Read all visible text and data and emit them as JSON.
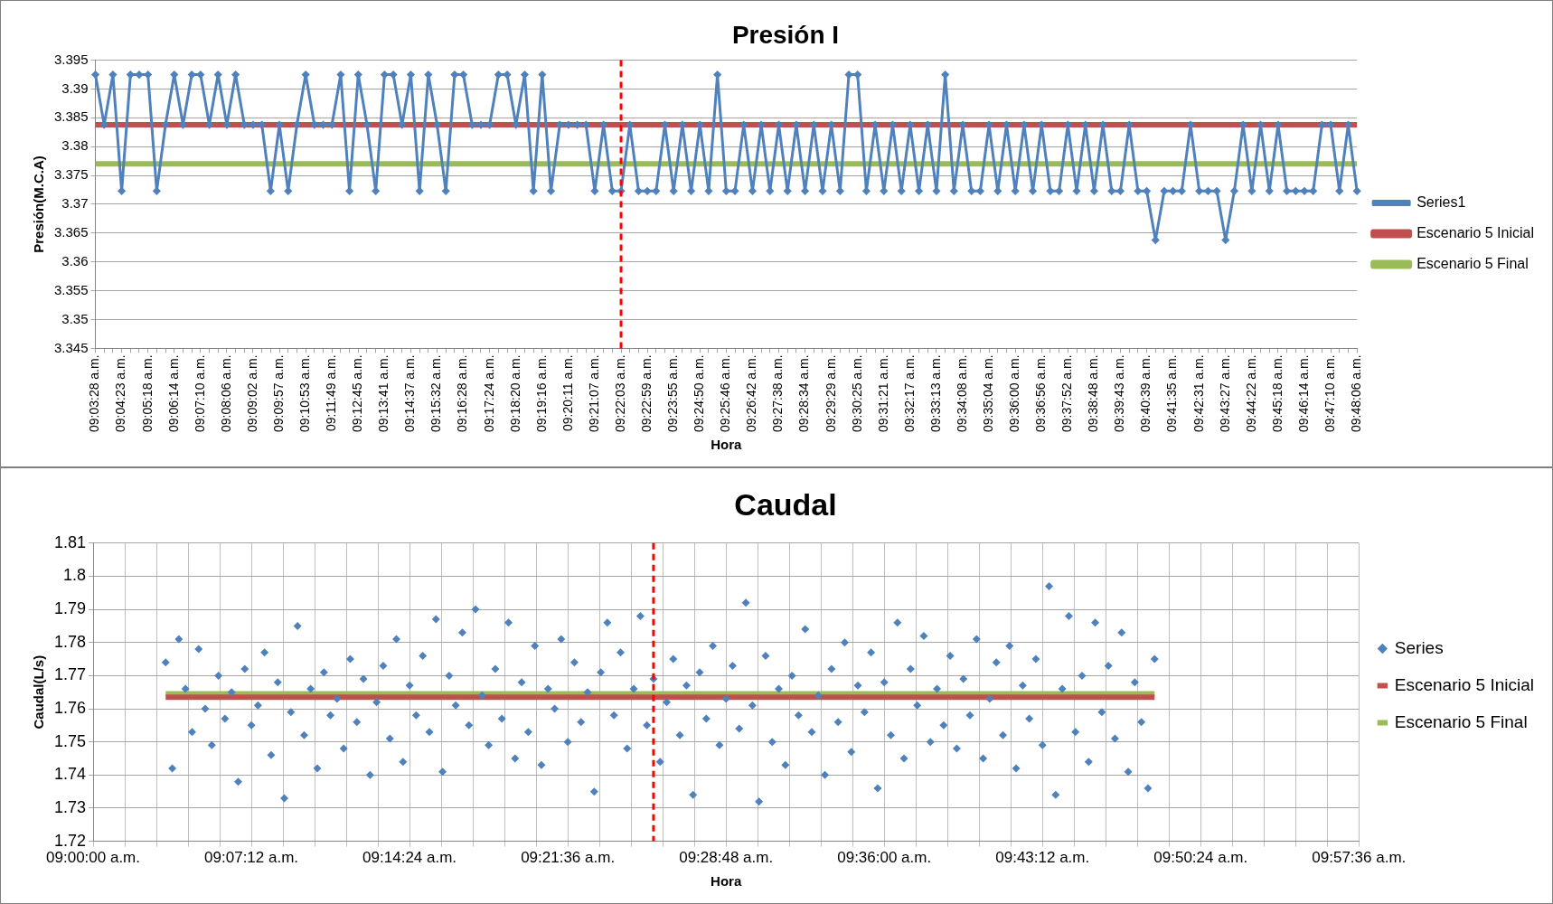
{
  "chart_data": [
    {
      "type": "line",
      "title": "Presión I",
      "xlabel": "Hora",
      "ylabel": "Presión(M.C.A)",
      "categories": [
        "09:03:28 a.m.",
        null,
        null,
        "09:04:23 a.m.",
        null,
        null,
        "09:05:18 a.m.",
        null,
        null,
        "09:06:14 a.m.",
        null,
        null,
        "09:07:10 a.m.",
        null,
        null,
        "09:08:06 a.m.",
        null,
        null,
        "09:09:02 a.m.",
        null,
        null,
        "09:09:57 a.m.",
        null,
        null,
        "09:10:53 a.m.",
        null,
        null,
        "09:11:49 a.m.",
        null,
        null,
        "09:12:45 a.m.",
        null,
        null,
        "09:13:41 a.m.",
        null,
        null,
        "09:14:37 a.m.",
        null,
        null,
        "09:15:32 a.m.",
        null,
        null,
        "09:16:28 a.m.",
        null,
        null,
        "09:17:24 a.m.",
        null,
        null,
        "09:18:20 a.m.",
        null,
        null,
        "09:19:16 a.m.",
        null,
        null,
        "09:20:11 a.m.",
        null,
        null,
        "09:21:07 a.m.",
        null,
        null,
        "09:22:03 a.m.",
        null,
        null,
        "09:22:59 a.m.",
        null,
        null,
        "09:23:55 a.m.",
        null,
        null,
        "09:24:50 a.m.",
        null,
        null,
        "09:25:46 a.m.",
        null,
        null,
        "09:26:42 a.m.",
        null,
        null,
        "09:27:38 a.m.",
        null,
        null,
        "09:28:34 a.m.",
        null,
        null,
        "09:29:29 a.m.",
        null,
        null,
        "09:30:25 a.m.",
        null,
        null,
        "09:31:21 a.m.",
        null,
        null,
        "09:32:17 a.m.",
        null,
        null,
        "09:33:13 a.m.",
        null,
        null,
        "09:34:08 a.m.",
        null,
        null,
        "09:35:04 a.m.",
        null,
        null,
        "09:36:00 a.m.",
        null,
        null,
        "09:36:56 a.m.",
        null,
        null,
        "09:37:52 a.m.",
        null,
        null,
        "09:38:48 a.m.",
        null,
        null,
        "09:39:43 a.m.",
        null,
        null,
        "09:40:39 a.m.",
        null,
        null,
        "09:41:35 a.m.",
        null,
        null,
        "09:42:31 a.m.",
        null,
        null,
        "09:43:27 a.m.",
        null,
        null,
        "09:44:22 a.m.",
        null,
        null,
        "09:45:18 a.m.",
        null,
        null,
        "09:46:14 a.m.",
        null,
        null,
        "09:47:10 a.m.",
        null,
        null,
        "09:48:06 a.m."
      ],
      "series": [
        {
          "name": "Series1",
          "color": "#4f81bd",
          "marker": "diamond",
          "values": [
            3.3925,
            3.3838,
            3.3925,
            3.3723,
            3.3925,
            3.3925,
            3.3925,
            3.3723,
            3.3838,
            3.3925,
            3.3838,
            3.3925,
            3.3925,
            3.3838,
            3.3925,
            3.3838,
            3.3925,
            3.3838,
            3.3838,
            3.3838,
            3.3723,
            3.3838,
            3.3723,
            3.3838,
            3.3925,
            3.3838,
            3.3838,
            3.3838,
            3.3925,
            3.3723,
            3.3925,
            3.3838,
            3.3723,
            3.3925,
            3.3925,
            3.3838,
            3.3925,
            3.3723,
            3.3925,
            3.3838,
            3.3723,
            3.3925,
            3.3925,
            3.3838,
            3.3838,
            3.3838,
            3.3925,
            3.3925,
            3.3838,
            3.3925,
            3.3723,
            3.3925,
            3.3723,
            3.3838,
            3.3838,
            3.3838,
            3.3838,
            3.3723,
            3.3838,
            3.3723,
            3.3723,
            3.3838,
            3.3723,
            3.3723,
            3.3723,
            3.3838,
            3.3723,
            3.3838,
            3.3723,
            3.3838,
            3.3723,
            3.3925,
            3.3723,
            3.3723,
            3.3838,
            3.3723,
            3.3838,
            3.3723,
            3.3838,
            3.3723,
            3.3838,
            3.3723,
            3.3838,
            3.3723,
            3.3838,
            3.3723,
            3.3925,
            3.3925,
            3.3723,
            3.3838,
            3.3723,
            3.3838,
            3.3723,
            3.3838,
            3.3723,
            3.3838,
            3.3723,
            3.3925,
            3.3723,
            3.3838,
            3.3723,
            3.3723,
            3.3838,
            3.3723,
            3.3838,
            3.3723,
            3.3838,
            3.3723,
            3.3838,
            3.3723,
            3.3723,
            3.3838,
            3.3723,
            3.3838,
            3.3723,
            3.3838,
            3.3723,
            3.3723,
            3.3838,
            3.3723,
            3.3723,
            3.3638,
            3.3723,
            3.3723,
            3.3723,
            3.3838,
            3.3723,
            3.3723,
            3.3723,
            3.3638,
            3.3723,
            3.3838,
            3.3723,
            3.3838,
            3.3723,
            3.3838,
            3.3723,
            3.3723,
            3.3723,
            3.3723,
            3.3838,
            3.3838,
            3.3723,
            3.3838,
            3.3723
          ]
        },
        {
          "name": "Escenario 5 Inicial",
          "color": "#c0504d",
          "marker": "none",
          "values": [
            3.3838,
            3.3838,
            3.3838,
            3.3838,
            3.3838,
            3.3838,
            3.3838,
            3.3838,
            3.3838,
            3.3838,
            3.3838,
            3.3838,
            3.3838,
            3.3838,
            3.3838,
            3.3838,
            3.3838,
            3.3838,
            3.3838,
            3.3838,
            3.3838,
            3.3838,
            3.3838,
            3.3838,
            3.3838,
            3.3838,
            3.3838,
            3.3838,
            3.3838,
            3.3838,
            3.3838,
            3.3838,
            3.3838,
            3.3838,
            3.3838,
            3.3838,
            3.3838,
            3.3838,
            3.3838,
            3.3838,
            3.3838,
            3.3838,
            3.3838,
            3.3838,
            3.3838,
            3.3838,
            3.3838,
            3.3838,
            3.3838,
            3.3838,
            3.3838,
            3.3838,
            3.3838,
            3.3838,
            3.3838,
            3.3838,
            3.3838,
            3.3838,
            3.3838,
            3.3838,
            3.3838,
            3.3838,
            3.3838,
            3.3838,
            3.3838,
            3.3838,
            3.3838,
            3.3838,
            3.3838,
            3.3838,
            3.3838,
            3.3838,
            3.3838,
            3.3838,
            3.3838,
            3.3838,
            3.3838,
            3.3838,
            3.3838,
            3.3838,
            3.3838,
            3.3838,
            3.3838,
            3.3838,
            3.3838,
            3.3838,
            3.3838,
            3.3838,
            3.3838,
            3.3838,
            3.3838,
            3.3838,
            3.3838,
            3.3838,
            3.3838,
            3.3838,
            3.3838,
            3.3838,
            3.3838,
            3.3838,
            3.3838,
            3.3838,
            3.3838,
            3.3838,
            3.3838,
            3.3838,
            3.3838,
            3.3838,
            3.3838,
            3.3838,
            3.3838,
            3.3838,
            3.3838,
            3.3838,
            3.3838,
            3.3838,
            3.3838,
            3.3838,
            3.3838,
            3.3838,
            3.3838,
            3.3838,
            3.3838,
            3.3838,
            3.3838,
            3.3838,
            3.3838,
            3.3838,
            3.3838,
            3.3838,
            3.3838,
            3.3838,
            3.3838,
            3.3838,
            3.3838,
            3.3838,
            3.3838,
            3.3838,
            3.3838,
            3.3838,
            3.3838,
            3.3838,
            3.3838,
            3.3838,
            3.3838
          ]
        },
        {
          "name": "Escenario 5 Final",
          "color": "#9bbb59",
          "marker": "none",
          "values": [
            3.377,
            3.377,
            3.377,
            3.377,
            3.377,
            3.377,
            3.377,
            3.377,
            3.377,
            3.377,
            3.377,
            3.377,
            3.377,
            3.377,
            3.377,
            3.377,
            3.377,
            3.377,
            3.377,
            3.377,
            3.377,
            3.377,
            3.377,
            3.377,
            3.377,
            3.377,
            3.377,
            3.377,
            3.377,
            3.377,
            3.377,
            3.377,
            3.377,
            3.377,
            3.377,
            3.377,
            3.377,
            3.377,
            3.377,
            3.377,
            3.377,
            3.377,
            3.377,
            3.377,
            3.377,
            3.377,
            3.377,
            3.377,
            3.377,
            3.377,
            3.377,
            3.377,
            3.377,
            3.377,
            3.377,
            3.377,
            3.377,
            3.377,
            3.377,
            3.377,
            3.377,
            3.377,
            3.377,
            3.377,
            3.377,
            3.377,
            3.377,
            3.377,
            3.377,
            3.377,
            3.377,
            3.377,
            3.377,
            3.377,
            3.377,
            3.377,
            3.377,
            3.377,
            3.377,
            3.377,
            3.377,
            3.377,
            3.377,
            3.377,
            3.377,
            3.377,
            3.377,
            3.377,
            3.377,
            3.377,
            3.377,
            3.377,
            3.377,
            3.377,
            3.377,
            3.377,
            3.377,
            3.377,
            3.377,
            3.377,
            3.377,
            3.377,
            3.377,
            3.377,
            3.377,
            3.377,
            3.377,
            3.377,
            3.377,
            3.377,
            3.377,
            3.377,
            3.377,
            3.377,
            3.377,
            3.377,
            3.377,
            3.377,
            3.377,
            3.377,
            3.377,
            3.377,
            3.377,
            3.377,
            3.377,
            3.377,
            3.377,
            3.377,
            3.377,
            3.377,
            3.377,
            3.377,
            3.377,
            3.377,
            3.377,
            3.377,
            3.377,
            3.377,
            3.377,
            3.377,
            3.377,
            3.377,
            3.377,
            3.377,
            3.377
          ]
        }
      ],
      "ylim": [
        3.345,
        3.395
      ],
      "yticks": [
        3.345,
        3.35,
        3.355,
        3.36,
        3.365,
        3.37,
        3.375,
        3.38,
        3.385,
        3.39,
        3.395
      ],
      "grid": "y",
      "legend": "right",
      "ref_lines": [
        {
          "axis": "x",
          "value": "09:22:03 a.m.",
          "color": "#ff0000",
          "line_style": "dashed"
        }
      ]
    },
    {
      "type": "scatter",
      "title": "Caudal",
      "xlabel": "Hora",
      "ylabel": "Caudal(L/s)",
      "x": [
        9.055,
        9.06,
        9.065,
        9.07,
        9.075,
        9.08,
        9.085,
        9.09,
        9.095,
        9.1,
        9.105,
        9.11,
        9.115,
        9.12,
        9.125,
        9.13,
        9.135,
        9.14,
        9.145,
        9.15,
        9.155,
        9.16,
        9.165,
        9.17,
        9.175,
        9.18,
        9.185,
        9.19,
        9.195,
        9.2,
        9.205,
        9.21,
        9.215,
        9.22,
        9.225,
        9.23,
        9.235,
        9.24,
        9.245,
        9.25,
        9.255,
        9.26,
        9.265,
        9.27,
        9.275,
        9.28,
        9.285,
        9.29,
        9.295,
        9.3,
        9.305,
        9.31,
        9.315,
        9.32,
        9.325,
        9.33,
        9.335,
        9.34,
        9.345,
        9.35,
        9.355,
        9.36,
        9.365,
        9.37,
        9.375,
        9.38,
        9.385,
        9.39,
        9.395,
        9.4,
        9.405,
        9.41,
        9.415,
        9.42,
        9.425,
        9.43,
        9.435,
        9.44,
        9.445,
        9.45,
        9.455,
        9.46,
        9.465,
        9.47,
        9.475,
        9.48,
        9.485,
        9.49,
        9.495,
        9.5,
        9.505,
        9.51,
        9.515,
        9.52,
        9.525,
        9.53,
        9.535,
        9.54,
        9.545,
        9.55,
        9.555,
        9.56,
        9.565,
        9.57,
        9.575,
        9.58,
        9.585,
        9.59,
        9.595,
        9.6,
        9.605,
        9.61,
        9.615,
        9.62,
        9.625,
        9.63,
        9.635,
        9.64,
        9.645,
        9.65,
        9.655,
        9.66,
        9.665,
        9.67,
        9.675,
        9.68,
        9.685,
        9.69,
        9.695,
        9.7,
        9.705,
        9.71,
        9.715,
        9.72,
        9.725,
        9.73,
        9.735,
        9.74,
        9.745,
        9.75,
        9.755,
        9.76,
        9.765,
        9.77,
        9.775,
        9.78,
        9.785,
        9.79,
        9.795,
        9.8,
        9.805
      ],
      "series": [
        {
          "name": "Series",
          "color": "#4f81bd",
          "marker": "diamond",
          "values": [
            1.774,
            1.742,
            1.781,
            1.766,
            1.753,
            1.778,
            1.76,
            1.749,
            1.77,
            1.757,
            1.765,
            1.738,
            1.772,
            1.755,
            1.761,
            1.777,
            1.746,
            1.768,
            1.733,
            1.759,
            1.785,
            1.752,
            1.766,
            1.742,
            1.771,
            1.758,
            1.763,
            1.748,
            1.775,
            1.756,
            1.769,
            1.74,
            1.762,
            1.773,
            1.751,
            1.781,
            1.744,
            1.767,
            1.758,
            1.776,
            1.753,
            1.787,
            1.741,
            1.77,
            1.761,
            1.783,
            1.755,
            1.79,
            1.764,
            1.749,
            1.772,
            1.757,
            1.786,
            1.745,
            1.768,
            1.753,
            1.779,
            1.743,
            1.766,
            1.76,
            1.781,
            1.75,
            1.774,
            1.756,
            1.765,
            1.735,
            1.771,
            1.786,
            1.758,
            1.777,
            1.748,
            1.766,
            1.788,
            1.755,
            1.769,
            1.744,
            1.762,
            1.775,
            1.752,
            1.767,
            1.734,
            1.771,
            1.757,
            1.779,
            1.749,
            1.763,
            1.773,
            1.754,
            1.792,
            1.761,
            1.732,
            1.776,
            1.75,
            1.766,
            1.743,
            1.77,
            1.758,
            1.784,
            1.753,
            1.764,
            1.74,
            1.772,
            1.756,
            1.78,
            1.747,
            1.767,
            1.759,
            1.777,
            1.736,
            1.768,
            1.752,
            1.786,
            1.745,
            1.772,
            1.761,
            1.782,
            1.75,
            1.766,
            1.755,
            1.776,
            1.748,
            1.769,
            1.758,
            1.781,
            1.745,
            1.763,
            1.774,
            1.752,
            1.779,
            1.742,
            1.767,
            1.757,
            1.775,
            1.749,
            1.797,
            1.734,
            1.766,
            1.788,
            1.753,
            1.77,
            1.744,
            1.786,
            1.759,
            1.773,
            1.751,
            1.783,
            1.741,
            1.768,
            1.756,
            1.736,
            1.775
          ]
        },
        {
          "name": "Escenario 5 Inicial",
          "type": "line",
          "color": "#c0504d",
          "values": [
            1.7635,
            1.7635,
            1.7635,
            1.7635,
            1.7635,
            1.7635,
            1.7635,
            1.7635,
            1.7635,
            1.7635,
            1.7635,
            1.7635,
            1.7635,
            1.7635,
            1.7635,
            1.7635,
            1.7635,
            1.7635,
            1.7635,
            1.7635,
            1.7635,
            1.7635,
            1.7635,
            1.7635,
            1.7635,
            1.7635,
            1.7635,
            1.7635,
            1.7635,
            1.7635,
            1.7635,
            1.7635,
            1.7635,
            1.7635,
            1.7635,
            1.7635,
            1.7635,
            1.7635,
            1.7635,
            1.7635,
            1.7635,
            1.7635,
            1.7635,
            1.7635,
            1.7635,
            1.7635,
            1.7635,
            1.7635,
            1.7635,
            1.7635,
            1.7635,
            1.7635,
            1.7635,
            1.7635,
            1.7635,
            1.7635,
            1.7635,
            1.7635,
            1.7635,
            1.7635,
            1.7635,
            1.7635,
            1.7635,
            1.7635,
            1.7635,
            1.7635,
            1.7635,
            1.7635,
            1.7635,
            1.7635,
            1.7635,
            1.7635,
            1.7635,
            1.7635,
            1.7635,
            1.7635,
            1.7635,
            1.7635,
            1.7635,
            1.7635,
            1.7635,
            1.7635,
            1.7635,
            1.7635,
            1.7635,
            1.7635,
            1.7635,
            1.7635,
            1.7635,
            1.7635,
            1.7635,
            1.7635,
            1.7635,
            1.7635,
            1.7635,
            1.7635,
            1.7635,
            1.7635,
            1.7635,
            1.7635,
            1.7635,
            1.7635,
            1.7635,
            1.7635,
            1.7635,
            1.7635,
            1.7635,
            1.7635,
            1.7635,
            1.7635,
            1.7635,
            1.7635,
            1.7635,
            1.7635,
            1.7635,
            1.7635,
            1.7635,
            1.7635,
            1.7635,
            1.7635,
            1.7635,
            1.7635,
            1.7635,
            1.7635,
            1.7635,
            1.7635,
            1.7635,
            1.7635,
            1.7635,
            1.7635,
            1.7635,
            1.7635,
            1.7635,
            1.7635,
            1.7635,
            1.7635,
            1.7635,
            1.7635,
            1.7635,
            1.7635,
            1.7635,
            1.7635,
            1.7635,
            1.7635,
            1.7635,
            1.7635,
            1.7635,
            1.7635,
            1.7635,
            1.7635,
            1.7635
          ]
        },
        {
          "name": "Escenario 5 Final",
          "type": "line",
          "color": "#9bbb59",
          "values": [
            1.7645,
            1.7645,
            1.7645,
            1.7645,
            1.7645,
            1.7645,
            1.7645,
            1.7645,
            1.7645,
            1.7645,
            1.7645,
            1.7645,
            1.7645,
            1.7645,
            1.7645,
            1.7645,
            1.7645,
            1.7645,
            1.7645,
            1.7645,
            1.7645,
            1.7645,
            1.7645,
            1.7645,
            1.7645,
            1.7645,
            1.7645,
            1.7645,
            1.7645,
            1.7645,
            1.7645,
            1.7645,
            1.7645,
            1.7645,
            1.7645,
            1.7645,
            1.7645,
            1.7645,
            1.7645,
            1.7645,
            1.7645,
            1.7645,
            1.7645,
            1.7645,
            1.7645,
            1.7645,
            1.7645,
            1.7645,
            1.7645,
            1.7645,
            1.7645,
            1.7645,
            1.7645,
            1.7645,
            1.7645,
            1.7645,
            1.7645,
            1.7645,
            1.7645,
            1.7645,
            1.7645,
            1.7645,
            1.7645,
            1.7645,
            1.7645,
            1.7645,
            1.7645,
            1.7645,
            1.7645,
            1.7645,
            1.7645,
            1.7645,
            1.7645,
            1.7645,
            1.7645,
            1.7645,
            1.7645,
            1.7645,
            1.7645,
            1.7645,
            1.7645,
            1.7645,
            1.7645,
            1.7645,
            1.7645,
            1.7645,
            1.7645,
            1.7645,
            1.7645,
            1.7645,
            1.7645,
            1.7645,
            1.7645,
            1.7645,
            1.7645,
            1.7645,
            1.7645,
            1.7645,
            1.7645,
            1.7645,
            1.7645,
            1.7645,
            1.7645,
            1.7645,
            1.7645,
            1.7645,
            1.7645,
            1.7645,
            1.7645,
            1.7645,
            1.7645,
            1.7645,
            1.7645,
            1.7645,
            1.7645,
            1.7645,
            1.7645,
            1.7645,
            1.7645,
            1.7645,
            1.7645,
            1.7645,
            1.7645,
            1.7645,
            1.7645,
            1.7645,
            1.7645,
            1.7645,
            1.7645,
            1.7645,
            1.7645,
            1.7645,
            1.7645,
            1.7645,
            1.7645,
            1.7645,
            1.7645,
            1.7645,
            1.7645,
            1.7645,
            1.7645,
            1.7645,
            1.7645,
            1.7645,
            1.7645,
            1.7645,
            1.7645,
            1.7645,
            1.7645,
            1.7645,
            1.7645
          ]
        }
      ],
      "xlim": [
        9,
        9.96
      ],
      "xticks": [
        {
          "value": 9,
          "label": "09:00:00 a.m."
        },
        {
          "value": 9.024,
          "label": null
        },
        {
          "value": 9.048,
          "label": null
        },
        {
          "value": 9.072,
          "label": null
        },
        {
          "value": 9.096,
          "label": null
        },
        {
          "value": 9.12,
          "label": "09:07:12 a.m."
        },
        {
          "value": 9.144,
          "label": null
        },
        {
          "value": 9.168,
          "label": null
        },
        {
          "value": 9.192,
          "label": null
        },
        {
          "value": 9.216,
          "label": null
        },
        {
          "value": 9.24,
          "label": "09:14:24 a.m."
        },
        {
          "value": 9.264,
          "label": null
        },
        {
          "value": 9.288,
          "label": null
        },
        {
          "value": 9.312,
          "label": null
        },
        {
          "value": 9.336,
          "label": null
        },
        {
          "value": 9.36,
          "label": "09:21:36 a.m."
        },
        {
          "value": 9.384,
          "label": null
        },
        {
          "value": 9.408,
          "label": null
        },
        {
          "value": 9.432,
          "label": null
        },
        {
          "value": 9.456,
          "label": null
        },
        {
          "value": 9.48,
          "label": "09:28:48 a.m."
        },
        {
          "value": 9.504,
          "label": null
        },
        {
          "value": 9.528,
          "label": null
        },
        {
          "value": 9.552,
          "label": null
        },
        {
          "value": 9.576,
          "label": null
        },
        {
          "value": 9.6,
          "label": "09:36:00 a.m."
        },
        {
          "value": 9.624,
          "label": null
        },
        {
          "value": 9.648,
          "label": null
        },
        {
          "value": 9.672,
          "label": null
        },
        {
          "value": 9.696,
          "label": null
        },
        {
          "value": 9.72,
          "label": "09:43:12 a.m."
        },
        {
          "value": 9.744,
          "label": null
        },
        {
          "value": 9.768,
          "label": null
        },
        {
          "value": 9.792,
          "label": null
        },
        {
          "value": 9.816,
          "label": null
        },
        {
          "value": 9.84,
          "label": "09:50:24 a.m."
        },
        {
          "value": 9.864,
          "label": null
        },
        {
          "value": 9.888,
          "label": null
        },
        {
          "value": 9.912,
          "label": null
        },
        {
          "value": 9.936,
          "label": null
        },
        {
          "value": 9.96,
          "label": "09:57:36 a.m."
        }
      ],
      "ylim": [
        1.72,
        1.81
      ],
      "yticks": [
        1.72,
        1.73,
        1.74,
        1.75,
        1.76,
        1.77,
        1.78,
        1.79,
        1.8,
        1.81
      ],
      "grid": true,
      "legend": "right",
      "ref_lines": [
        {
          "axis": "x",
          "value": 9.425,
          "color": "#ff0000",
          "line_style": "dashed"
        }
      ]
    }
  ]
}
